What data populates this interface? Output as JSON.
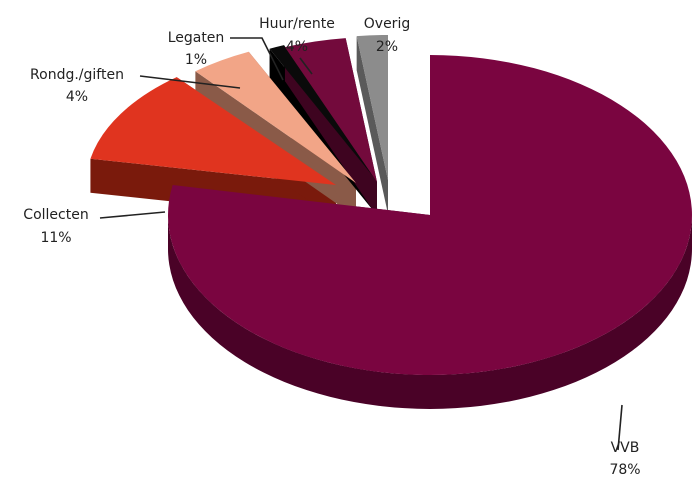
{
  "chart_data": {
    "type": "pie",
    "title": "",
    "style": "3d-exploded",
    "legend": "none",
    "slices": [
      {
        "name": "VVB",
        "value": 78,
        "pct_label": "78%",
        "top_color": "#7a0540",
        "side_color": "#4a0227"
      },
      {
        "name": "Collecten",
        "value": 11,
        "pct_label": "11%",
        "top_color": "#e0341f",
        "side_color": "#7a1a0c"
      },
      {
        "name": "Rondg./giften",
        "value": 4,
        "pct_label": "4%",
        "top_color": "#f2a587",
        "side_color": "#8a5a48"
      },
      {
        "name": "Legaten",
        "value": 1,
        "pct_label": "1%",
        "top_color": "#0a0a0a",
        "side_color": "#000000"
      },
      {
        "name": "Huur/rente",
        "value": 4,
        "pct_label": "4%",
        "top_color": "#730a3c",
        "side_color": "#3e0420"
      },
      {
        "name": "Overig",
        "value": 2,
        "pct_label": "2%",
        "top_color": "#8c8c8c",
        "side_color": "#5a5a5a"
      }
    ]
  }
}
